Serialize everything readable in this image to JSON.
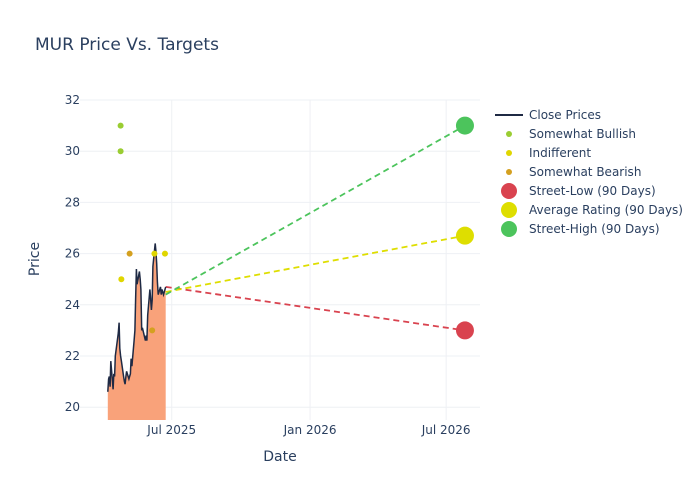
{
  "chart_data": {
    "type": "line",
    "title": "MUR Price Vs. Targets",
    "xlabel": "Date",
    "ylabel": "Price",
    "xlim": [
      "2025-03-01",
      "2026-08-15"
    ],
    "ylim": [
      19.5,
      32
    ],
    "x_ticks": [
      {
        "date": "2025-07-01",
        "label": "Jul 2025"
      },
      {
        "date": "2026-01-01",
        "label": "Jan 2026"
      },
      {
        "date": "2026-07-01",
        "label": "Jul 2026"
      }
    ],
    "y_ticks": [
      20,
      22,
      24,
      26,
      28,
      30,
      32
    ],
    "grid": true,
    "legend_position": "top-right",
    "close_prices": {
      "name": "Close Prices",
      "color": "#1f2a44",
      "fill_color": "#f9a27a",
      "points": [
        [
          "2025-04-07",
          20.6
        ],
        [
          "2025-04-08",
          21.1
        ],
        [
          "2025-04-09",
          21.2
        ],
        [
          "2025-04-10",
          20.8
        ],
        [
          "2025-04-11",
          21.8
        ],
        [
          "2025-04-14",
          20.7
        ],
        [
          "2025-04-15",
          21.3
        ],
        [
          "2025-04-16",
          21.2
        ],
        [
          "2025-04-17",
          22.0
        ],
        [
          "2025-04-21",
          22.9
        ],
        [
          "2025-04-22",
          23.3
        ],
        [
          "2025-04-23",
          22.3
        ],
        [
          "2025-04-24",
          22.0
        ],
        [
          "2025-04-25",
          21.8
        ],
        [
          "2025-04-28",
          21.2
        ],
        [
          "2025-04-29",
          21.0
        ],
        [
          "2025-04-30",
          20.9
        ],
        [
          "2025-05-01",
          21.2
        ],
        [
          "2025-05-02",
          21.4
        ],
        [
          "2025-05-05",
          21.1
        ],
        [
          "2025-05-06",
          21.2
        ],
        [
          "2025-05-07",
          21.3
        ],
        [
          "2025-05-08",
          21.9
        ],
        [
          "2025-05-09",
          21.6
        ],
        [
          "2025-05-12",
          22.6
        ],
        [
          "2025-05-13",
          23.0
        ],
        [
          "2025-05-14",
          24.2
        ],
        [
          "2025-05-15",
          25.4
        ],
        [
          "2025-05-16",
          24.8
        ],
        [
          "2025-05-19",
          25.3
        ],
        [
          "2025-05-20",
          25.0
        ],
        [
          "2025-05-21",
          24.6
        ],
        [
          "2025-05-22",
          23.0
        ],
        [
          "2025-05-23",
          23.1
        ],
        [
          "2025-05-27",
          22.6
        ],
        [
          "2025-05-28",
          22.8
        ],
        [
          "2025-05-29",
          22.6
        ],
        [
          "2025-05-30",
          23.6
        ],
        [
          "2025-06-02",
          24.6
        ],
        [
          "2025-06-03",
          24.2
        ],
        [
          "2025-06-04",
          23.8
        ],
        [
          "2025-06-05",
          24.2
        ],
        [
          "2025-06-06",
          25.5
        ],
        [
          "2025-06-09",
          26.4
        ],
        [
          "2025-06-10",
          26.1
        ],
        [
          "2025-06-11",
          25.6
        ],
        [
          "2025-06-12",
          24.9
        ],
        [
          "2025-06-13",
          24.4
        ],
        [
          "2025-06-16",
          24.7
        ],
        [
          "2025-06-17",
          24.4
        ],
        [
          "2025-06-18",
          24.6
        ],
        [
          "2025-06-20",
          24.4
        ],
        [
          "2025-06-23",
          24.7
        ]
      ]
    },
    "ratings": [
      {
        "name": "Somewhat Bullish",
        "color": "#9acd32",
        "points": [
          [
            "2025-04-24",
            31
          ],
          [
            "2025-04-24",
            30
          ]
        ]
      },
      {
        "name": "Indifferent",
        "color": "#e0d600",
        "points": [
          [
            "2025-04-25",
            25
          ],
          [
            "2025-06-08",
            26
          ],
          [
            "2025-06-22",
            26
          ]
        ]
      },
      {
        "name": "Somewhat Bearish",
        "color": "#d4a020",
        "points": [
          [
            "2025-05-06",
            26
          ],
          [
            "2025-06-05",
            23
          ]
        ]
      }
    ],
    "targets": [
      {
        "name": "Street-Low (90 Days)",
        "color": "#d9434f",
        "value": 23.0,
        "start": [
          "2025-06-23",
          24.7
        ],
        "end_date": "2026-07-26"
      },
      {
        "name": "Average Rating (90 Days)",
        "color": "#dede00",
        "value": 26.7,
        "start": [
          "2025-06-23",
          24.5
        ],
        "end_date": "2026-07-26"
      },
      {
        "name": "Street-High (90 Days)",
        "color": "#4cc45c",
        "value": 31.0,
        "start": [
          "2025-06-23",
          24.4
        ],
        "end_date": "2026-07-26"
      }
    ],
    "legend": [
      "Close Prices",
      "Somewhat Bullish",
      "Indifferent",
      "Somewhat Bearish",
      "Street-Low (90 Days)",
      "Average Rating (90 Days)",
      "Street-High (90 Days)"
    ]
  }
}
